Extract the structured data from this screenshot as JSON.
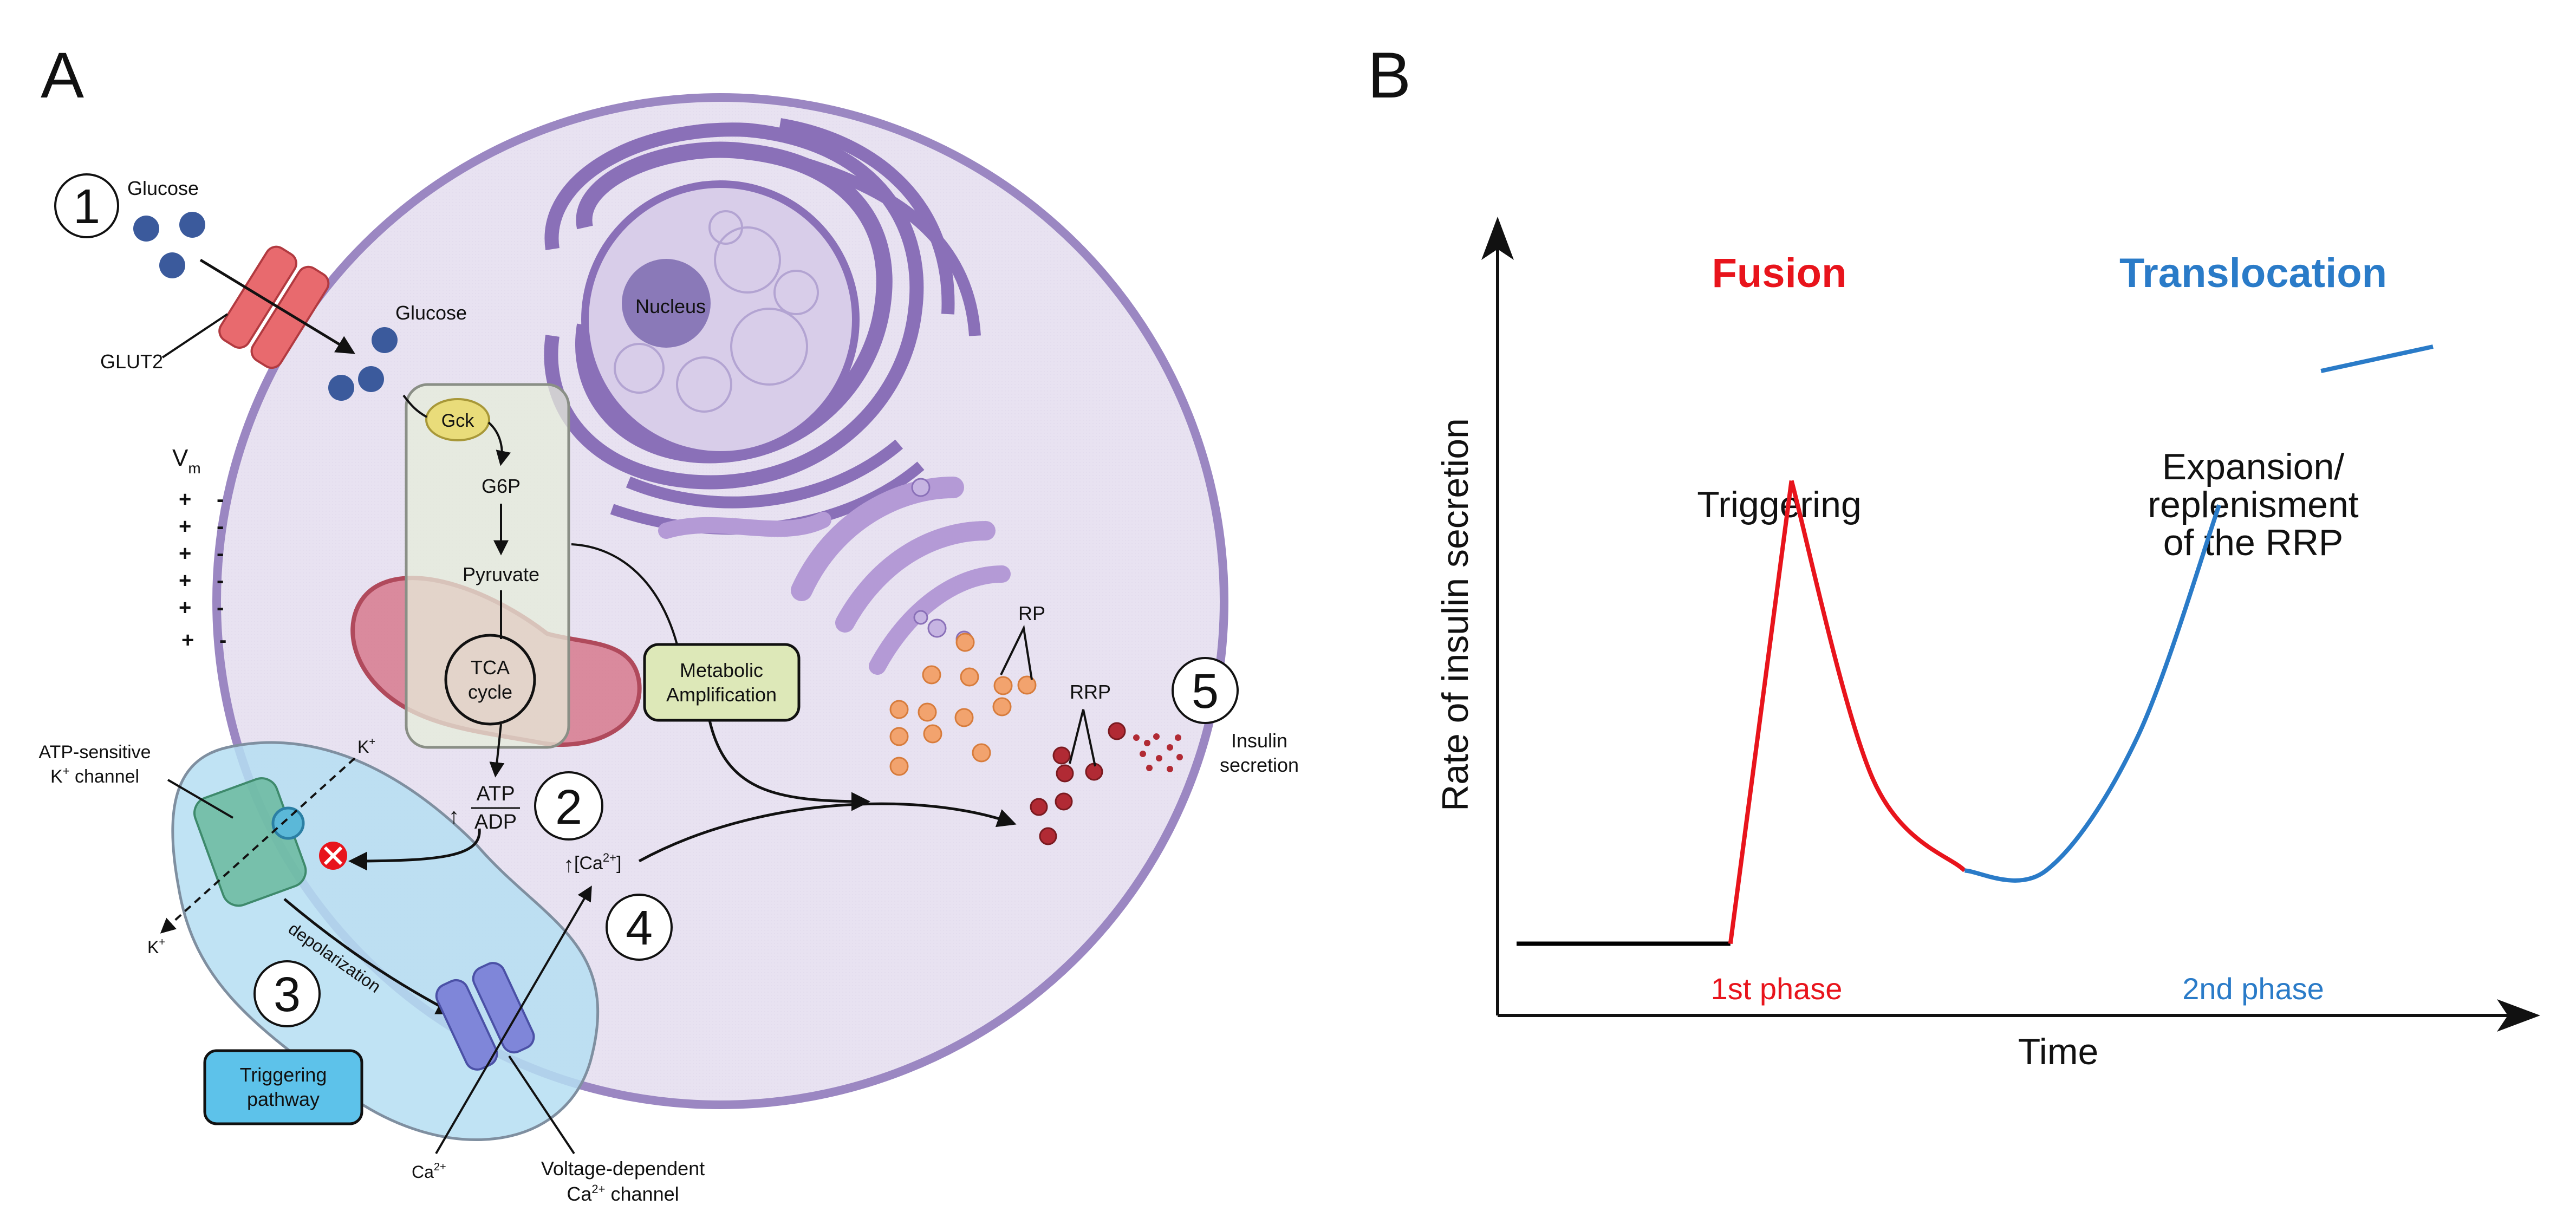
{
  "panel_a": {
    "label": "A",
    "steps": [
      "1",
      "2",
      "3",
      "4",
      "5"
    ],
    "glucose_outside": "Glucose",
    "glucose_inside": "Glucose",
    "glut2": "GLUT2",
    "gck": "Gck",
    "g6p": "G6P",
    "pyruvate": "Pyruvate",
    "tca_line1": "TCA",
    "tca_line2": "cycle",
    "nucleus": "Nucleus",
    "vm": "V",
    "vm_sub": "m",
    "atp": "ATP",
    "adp": "ADP",
    "katp_line1": "ATP-sensitive",
    "katp_line2": "K",
    "katp_line2_sup": "+",
    "katp_line2_rest": " channel",
    "k_in": "K",
    "k_out": "K",
    "k_sup": "+",
    "depolarization": "depolarization",
    "triggering_line1": "Triggering",
    "triggering_line2": "pathway",
    "ca_out": "Ca",
    "ca_sup": "2+",
    "ca_in_open": "[Ca",
    "ca_in_sup": "2+",
    "ca_in_close": "]",
    "vdcc_line1": "Voltage-dependent",
    "vdcc_line2_a": "Ca",
    "vdcc_line2_sup": "2+",
    "vdcc_line2_b": " channel",
    "metabolic_line1": "Metabolic",
    "metabolic_line2": "Amplification",
    "rp": "RP",
    "rrp": "RRP",
    "insulin_line1": "Insulin",
    "insulin_line2": "secretion"
  },
  "panel_b": {
    "label": "B",
    "fusion": "Fusion",
    "translocation": "Translocation",
    "triggering": "Triggering",
    "expansion_lines": [
      "Expansion/",
      "replenisment",
      "of the RRP"
    ],
    "first_phase": "1st phase",
    "second_phase": "2nd phase",
    "ylabel": "Rate of insulin secretion",
    "xlabel": "Time"
  },
  "colors": {
    "red": "#e8141c",
    "blue": "#2a7bc8",
    "cell_fill": "#e8e2f1",
    "cell_border": "#9b87c2",
    "er_purple": "#8a70b8",
    "triggering_blue": "#b5def2"
  },
  "chart_data": {
    "type": "line",
    "title": "",
    "xlabel": "Time",
    "ylabel": "Rate of insulin secretion",
    "series": [
      {
        "name": "1st phase",
        "color": "#e8141c",
        "points": [
          [
            0.21,
            0.02
          ],
          [
            0.27,
            0.78
          ],
          [
            0.35,
            0.29
          ],
          [
            0.44,
            0.14
          ]
        ]
      },
      {
        "name": "2nd phase",
        "color": "#2a7bc8",
        "points": [
          [
            0.44,
            0.14
          ],
          [
            0.52,
            0.14
          ],
          [
            0.61,
            0.36
          ],
          [
            0.69,
            0.74
          ],
          [
            0.79,
            0.96
          ],
          [
            0.9,
            1.0
          ]
        ]
      }
    ],
    "baseline": {
      "color": "#000000",
      "points": [
        [
          0.0,
          0.02
        ],
        [
          0.21,
          0.02
        ]
      ]
    }
  }
}
